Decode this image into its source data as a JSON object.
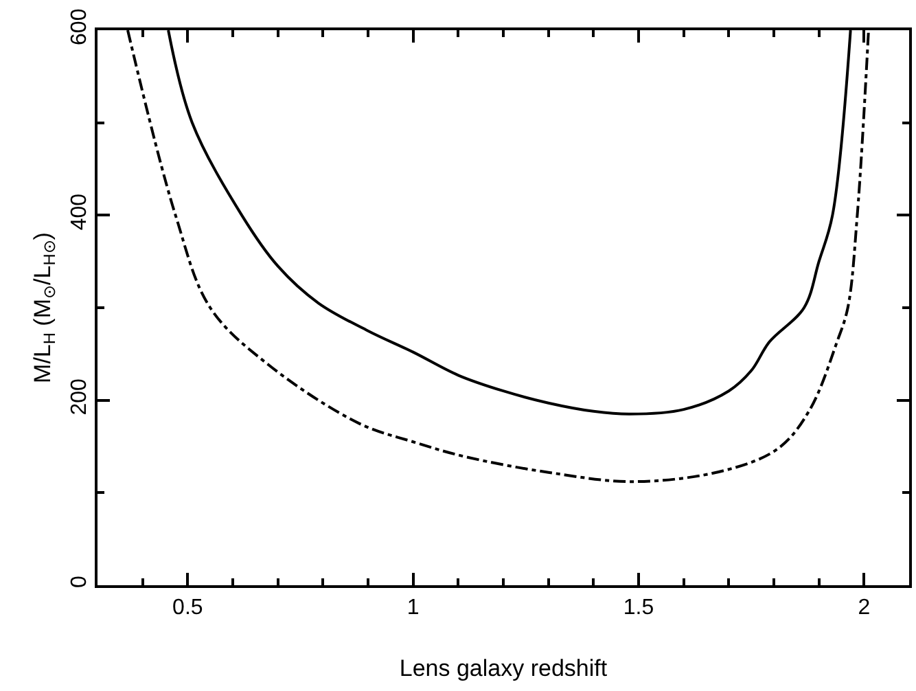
{
  "chart_data": {
    "type": "line",
    "xlabel": "Lens galaxy redshift",
    "ylabel": "M/L$_{H}$ (M$_{⊙}$/L$_{H⊙}$)",
    "xlim": [
      0.3,
      2.1
    ],
    "ylim": [
      0,
      600
    ],
    "xticks": [
      0.5,
      1,
      1.5,
      2
    ],
    "yticks": [
      0,
      200,
      400,
      600
    ],
    "legend": false,
    "marker": "none",
    "series": [
      {
        "color": "#000000",
        "line_style": "solid",
        "x": [
          0.457,
          0.51,
          0.62,
          0.7,
          0.79,
          0.9,
          1.0,
          1.1,
          1.2,
          1.3,
          1.4,
          1.48,
          1.6,
          1.7,
          1.75,
          1.79,
          1.867,
          1.9,
          1.93,
          1.97
        ],
        "values": [
          600,
          500,
          400,
          345,
          305,
          275,
          252,
          227,
          210,
          197,
          188,
          185,
          190,
          210,
          232,
          263,
          300,
          350,
          400,
          600
        ]
      },
      {
        "color": "#000000",
        "line_style": "dashdot",
        "x": [
          0.367,
          0.473,
          0.55,
          0.68,
          0.88,
          1.0,
          1.115,
          1.3,
          1.49,
          1.69,
          1.81,
          1.88,
          1.94,
          1.964,
          1.985,
          2.01
        ],
        "values": [
          600,
          400,
          300,
          238,
          175,
          155,
          139,
          122,
          112,
          124,
          148,
          190,
          263,
          300,
          400,
          600
        ]
      }
    ]
  }
}
